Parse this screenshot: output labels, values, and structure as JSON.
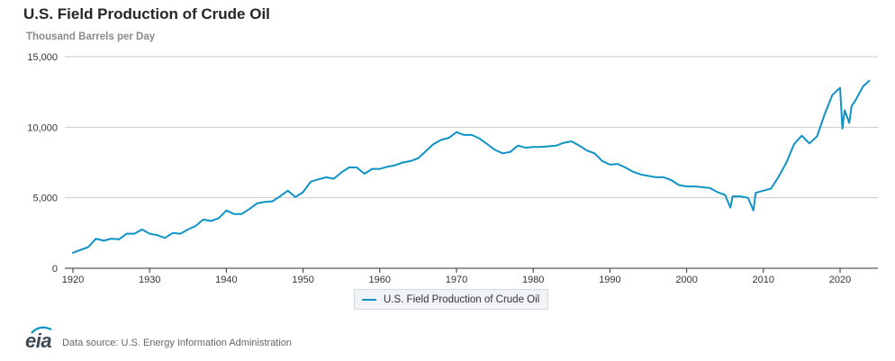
{
  "title": "U.S. Field Production of Crude Oil",
  "subtitle": "Thousand Barrels per Day",
  "source": "Data source: U.S. Energy Information Administration",
  "logo_text": "eia",
  "colors": {
    "series": "#0f93c6",
    "grid": "#cccccc",
    "axis": "#333333"
  },
  "chart_data": {
    "type": "line",
    "title": "U.S. Field Production of Crude Oil",
    "ylabel": "Thousand Barrels per Day",
    "xlabel": "",
    "xlim": [
      1920,
      2023.8
    ],
    "ylim": [
      0,
      15000
    ],
    "y_ticks": [
      0,
      5000,
      10000,
      15000
    ],
    "y_tick_labels": [
      "0",
      "5,000",
      "10,000",
      "15,000"
    ],
    "x_ticks": [
      1920,
      1930,
      1940,
      1950,
      1960,
      1970,
      1980,
      1990,
      2000,
      2010,
      2020
    ],
    "x_tick_labels": [
      "1920",
      "1930",
      "1940",
      "1950",
      "1960",
      "1970",
      "1980",
      "1990",
      "2000",
      "2010",
      "2020"
    ],
    "grid": true,
    "legend_position": "bottom-center",
    "series": [
      {
        "name": "U.S. Field Production of Crude Oil",
        "x": [
          1920,
          1921,
          1922,
          1923,
          1924,
          1925,
          1926,
          1927,
          1928,
          1929,
          1930,
          1931,
          1932,
          1933,
          1934,
          1935,
          1936,
          1937,
          1938,
          1939,
          1940,
          1941,
          1942,
          1943,
          1944,
          1945,
          1946,
          1947,
          1948,
          1949,
          1950,
          1951,
          1952,
          1953,
          1954,
          1955,
          1956,
          1957,
          1958,
          1959,
          1960,
          1961,
          1962,
          1963,
          1964,
          1965,
          1966,
          1967,
          1968,
          1969,
          1970,
          1971,
          1972,
          1973,
          1974,
          1975,
          1976,
          1977,
          1978,
          1979,
          1980,
          1981,
          1982,
          1983,
          1984,
          1985,
          1986,
          1987,
          1988,
          1989,
          1990,
          1991,
          1992,
          1993,
          1994,
          1995,
          1996,
          1997,
          1998,
          1999,
          2000,
          2001,
          2002,
          2003,
          2004,
          2005,
          2005.7,
          2006,
          2007,
          2008,
          2008.7,
          2009,
          2010,
          2011,
          2012,
          2013,
          2014,
          2015,
          2016,
          2017,
          2018,
          2019,
          2020,
          2020.3,
          2020.6,
          2021,
          2021.2,
          2021.5,
          2022,
          2023,
          2023.8
        ],
        "y": [
          1100,
          1300,
          1500,
          2100,
          1950,
          2100,
          2050,
          2450,
          2450,
          2750,
          2450,
          2350,
          2150,
          2500,
          2450,
          2750,
          3000,
          3450,
          3350,
          3550,
          4100,
          3850,
          3850,
          4200,
          4600,
          4700,
          4750,
          5100,
          5500,
          5050,
          5400,
          6150,
          6300,
          6450,
          6350,
          6800,
          7150,
          7150,
          6700,
          7050,
          7050,
          7200,
          7300,
          7500,
          7600,
          7800,
          8300,
          8800,
          9100,
          9250,
          9650,
          9450,
          9450,
          9200,
          8800,
          8400,
          8150,
          8250,
          8700,
          8550,
          8600,
          8600,
          8650,
          8700,
          8900,
          9000,
          8700,
          8350,
          8150,
          7600,
          7350,
          7400,
          7150,
          6850,
          6650,
          6550,
          6450,
          6450,
          6250,
          5900,
          5800,
          5800,
          5750,
          5700,
          5400,
          5200,
          4300,
          5100,
          5100,
          5000,
          4100,
          5350,
          5500,
          5650,
          6500,
          7500,
          8800,
          9400,
          8850,
          9350,
          10950,
          12300,
          12800,
          9900,
          11200,
          10600,
          10300,
          11500,
          11900,
          12900,
          13300
        ]
      }
    ]
  }
}
